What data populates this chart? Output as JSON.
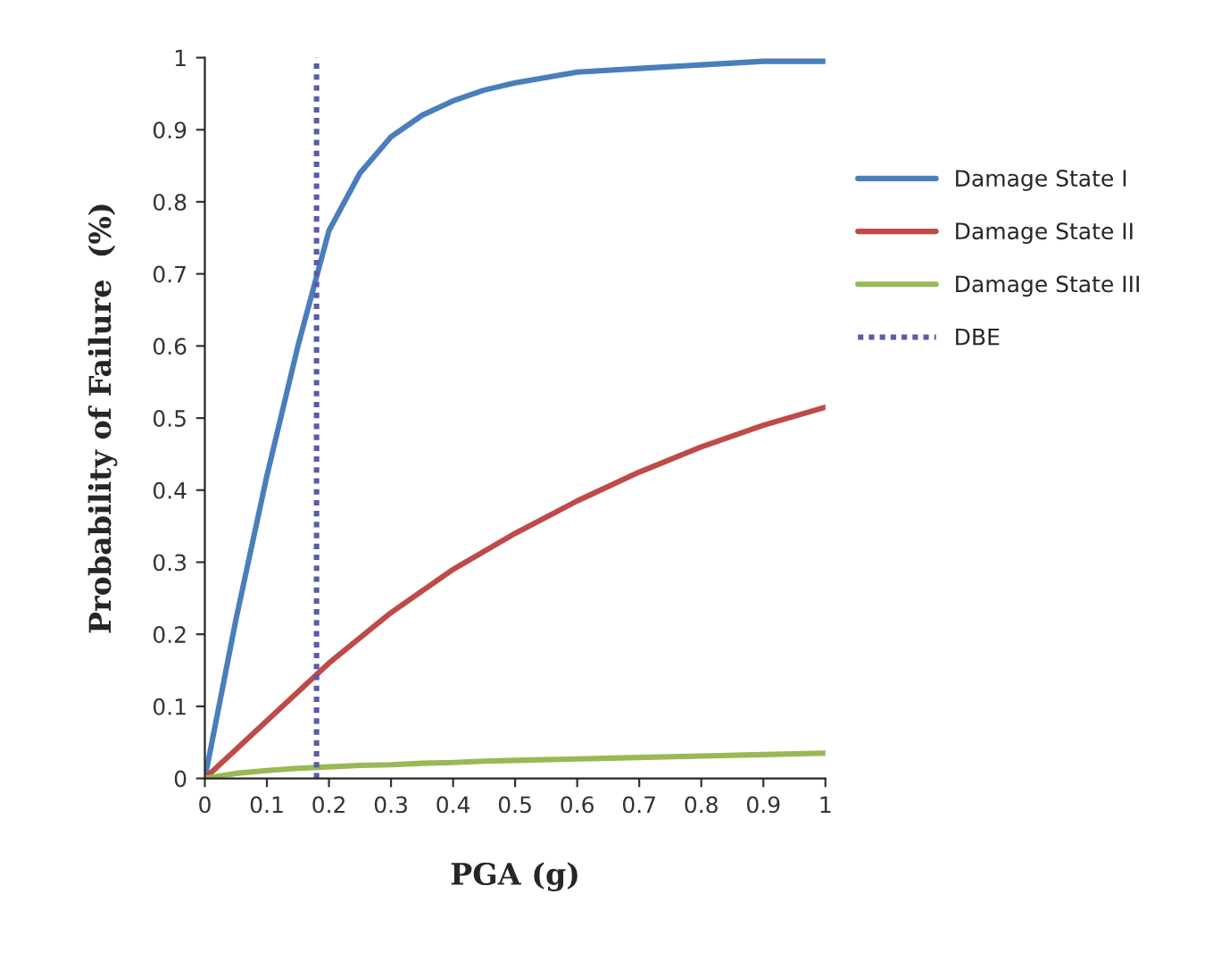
{
  "chart_data": {
    "type": "line",
    "xlabel": "PGA (g)",
    "ylabel": "Probability of Failure  (%)",
    "x": [
      0,
      0.05,
      0.1,
      0.15,
      0.2,
      0.25,
      0.3,
      0.35,
      0.4,
      0.45,
      0.5,
      0.6,
      0.7,
      0.8,
      0.9,
      1
    ],
    "series": [
      {
        "name": "Damage State I",
        "color": "#4a7ebb",
        "values": [
          0,
          0.22,
          0.42,
          0.6,
          0.76,
          0.84,
          0.89,
          0.92,
          0.94,
          0.955,
          0.965,
          0.98,
          0.985,
          0.99,
          0.995,
          0.995
        ]
      },
      {
        "name": "Damage State II",
        "color": "#be4b48",
        "values": [
          0,
          0.04,
          0.08,
          0.12,
          0.16,
          0.195,
          0.23,
          0.26,
          0.29,
          0.315,
          0.34,
          0.385,
          0.425,
          0.46,
          0.49,
          0.515
        ]
      },
      {
        "name": "Damage State III",
        "color": "#98b954",
        "values": [
          0,
          0.007,
          0.011,
          0.014,
          0.016,
          0.018,
          0.019,
          0.021,
          0.022,
          0.024,
          0.025,
          0.027,
          0.029,
          0.031,
          0.033,
          0.035
        ]
      },
      {
        "name": "DBE",
        "color": "#5b5ba8",
        "line_style": "dotted",
        "x": [
          0.18,
          0.18
        ],
        "values": [
          0,
          1
        ]
      }
    ],
    "xlim": [
      0,
      1
    ],
    "ylim": [
      0,
      1
    ],
    "xticks": [
      0,
      0.1,
      0.2,
      0.3,
      0.4,
      0.5,
      0.6,
      0.7,
      0.8,
      0.9,
      1
    ],
    "yticks": [
      0,
      0.1,
      0.2,
      0.3,
      0.4,
      0.5,
      0.6,
      0.7,
      0.8,
      0.9,
      1
    ],
    "grid": false,
    "legend": "right",
    "marker": "none",
    "line_style": "solid"
  }
}
